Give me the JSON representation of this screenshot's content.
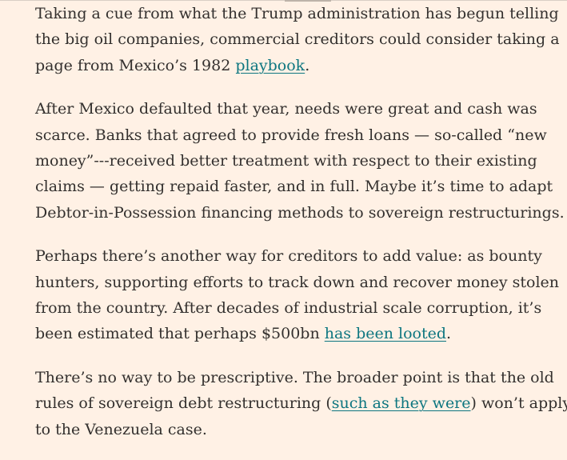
{
  "article": {
    "paragraphs": [
      {
        "lines": [
          {
            "text": "Taking a cue from what the Trump administration has begun telling"
          },
          {
            "text": "the big oil companies, commercial creditors could consider taking a"
          },
          {
            "before": "page from Mexico’s 1982 ",
            "link": "playbook",
            "after": "."
          }
        ]
      },
      {
        "lines": [
          {
            "text": "After Mexico defaulted that year, needs were great and cash was"
          },
          {
            "text": "scarce. Banks that agreed to provide fresh loans — so-called “new"
          },
          {
            "text": "money”---received better treatment with respect to their existing"
          },
          {
            "text": "claims — getting repaid faster, and in full. Maybe it’s time to adapt"
          },
          {
            "text": "Debtor-in-Possession financing methods to sovereign restructurings."
          }
        ]
      },
      {
        "lines": [
          {
            "text": "Perhaps there’s another way for creditors to add value: as bounty"
          },
          {
            "text": "hunters, supporting efforts to track down and recover money stolen"
          },
          {
            "text": "from the country. After decades of industrial scale corruption, it’s"
          },
          {
            "before": "been estimated that perhaps $500bn ",
            "link": "has been looted",
            "after": "."
          }
        ]
      },
      {
        "lines": [
          {
            "text": "There’s no way to be prescriptive. The broader point is that the old"
          },
          {
            "before": "rules of sovereign debt restructuring (",
            "link": "such as they were",
            "after": ") won’t apply"
          },
          {
            "text": "to the Venezuela case."
          }
        ]
      }
    ]
  }
}
